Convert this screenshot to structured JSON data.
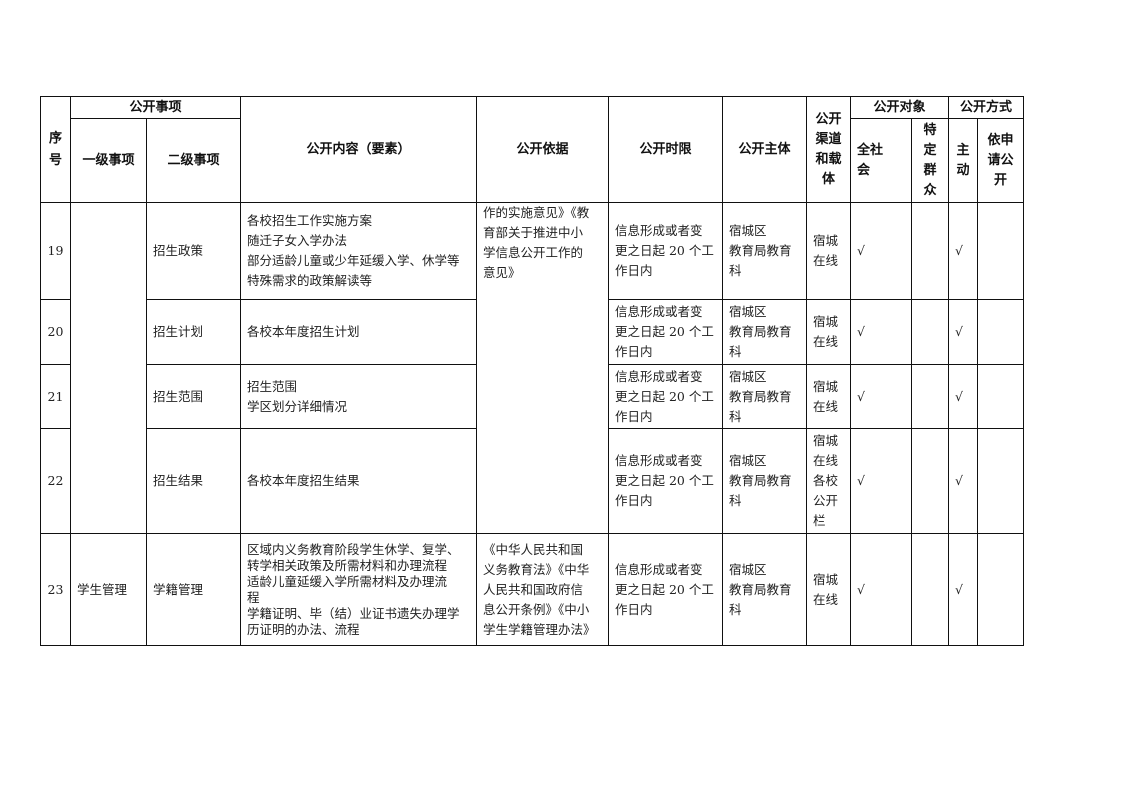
{
  "header": {
    "seq": "序\n号",
    "item_group": "公开事项",
    "level1": "一级事项",
    "level2": "二级事项",
    "content": "公开内容（要素）",
    "basis": "公开依据",
    "time_limit": "公开时限",
    "subject": "公开主体",
    "channel": "公开\n渠道\n和载\n体",
    "audience_group": "公开对象",
    "audience_all": "全社\n会",
    "audience_specific": "特\n定\n群\n众",
    "mode_group": "公开方式",
    "mode_active": "主\n动",
    "mode_request": "依申\n请公\n开"
  },
  "rows": [
    {
      "seq": "19",
      "level1": "",
      "level2": "招生政策",
      "content": "各校招生工作实施方案\n随迁子女入学办法\n部分适龄儿童或少年延缓入学、休学等\n特殊需求的政策解读等",
      "basis": "作的实施意见》《教\n育部关于推进中小\n学信息公开工作的\n意见》",
      "time_limit": "信息形成或者变\n更之日起 20 个工\n作日内",
      "subject": "宿城区\n教育局教育\n科",
      "channel": "宿城\n在线",
      "all": "√",
      "specific": "",
      "active": "√",
      "request": ""
    },
    {
      "seq": "20",
      "level2": "招生计划",
      "content": "各校本年度招生计划",
      "time_limit": "信息形成或者变\n更之日起 20 个工\n作日内",
      "subject": "宿城区\n教育局教育\n科",
      "channel": "宿城\n在线",
      "all": "√",
      "specific": "",
      "active": "√",
      "request": ""
    },
    {
      "seq": "21",
      "level2": "招生范围",
      "content": "招生范围\n学区划分详细情况",
      "time_limit": "信息形成或者变\n更之日起 20 个工\n作日内",
      "subject": "宿城区\n教育局教育\n科",
      "channel": "宿城\n在线",
      "all": "√",
      "specific": "",
      "active": "√",
      "request": ""
    },
    {
      "seq": "22",
      "level2": "招生结果",
      "content": "各校本年度招生结果",
      "time_limit": "信息形成或者变\n更之日起 20 个工\n作日内",
      "subject": "宿城区\n教育局教育\n科",
      "channel": "宿城\n在线\n各校\n公开\n栏",
      "all": "√",
      "specific": "",
      "active": "√",
      "request": ""
    },
    {
      "seq": "23",
      "level1": "学生管理",
      "level2": "学籍管理",
      "content": "区域内义务教育阶段学生休学、复学、\n转学相关政策及所需材料和办理流程\n适龄儿童延缓入学所需材料及办理流\n程\n学籍证明、毕（结）业证书遗失办理学\n历证明的办法、流程",
      "basis": "《中华人民共和国\n义务教育法》《中华\n人民共和国政府信\n息公开条例》《中小\n学生学籍管理办法》",
      "time_limit": "信息形成或者变\n更之日起 20 个工\n作日内",
      "subject": "宿城区\n教育局教育\n科",
      "channel": "宿城\n在线",
      "all": "√",
      "specific": "",
      "active": "√",
      "request": ""
    }
  ]
}
